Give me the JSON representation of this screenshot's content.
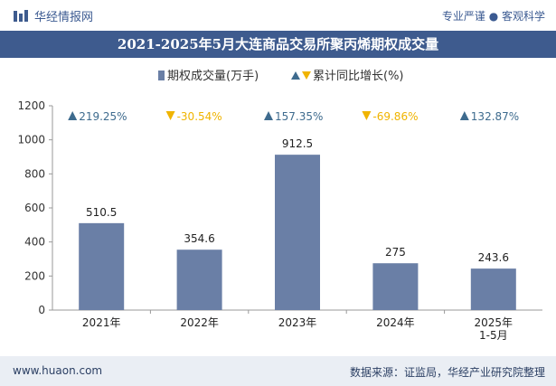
{
  "header": {
    "brand": "华经情报网",
    "slogan": "专业严谨 ● 客观科学"
  },
  "chart_data": {
    "type": "bar",
    "title": "2021-2025年5月大连商品交易所聚丙烯期权成交量",
    "categories": [
      "2021年",
      "2022年",
      "2023年",
      "2024年",
      "2025年 1-5月"
    ],
    "series": [
      {
        "name": "期权成交量(万手)",
        "values": [
          510.5,
          354.6,
          912.5,
          275,
          243.6
        ],
        "color": "#6a7fa6"
      }
    ],
    "growth": {
      "name": "累计同比增长(%)",
      "values": [
        219.25,
        -30.54,
        157.35,
        -69.86,
        132.87
      ],
      "labels": [
        "219.25%",
        "-30.54%",
        "157.35%",
        "-69.86%",
        "132.87%"
      ],
      "up_color": "#3e6b8e",
      "down_color": "#f0b400"
    },
    "value_labels": [
      "510.5",
      "354.6",
      "912.5",
      "275",
      "243.6"
    ],
    "y_ticks": [
      "0",
      "200",
      "400",
      "600",
      "800",
      "1000",
      "1200"
    ],
    "ylim": [
      0,
      1200
    ],
    "legend_position": "top-center",
    "grid": false
  },
  "footer": {
    "site": "www.huaon.com",
    "source": "数据来源：证监局，华经产业研究院整理"
  }
}
